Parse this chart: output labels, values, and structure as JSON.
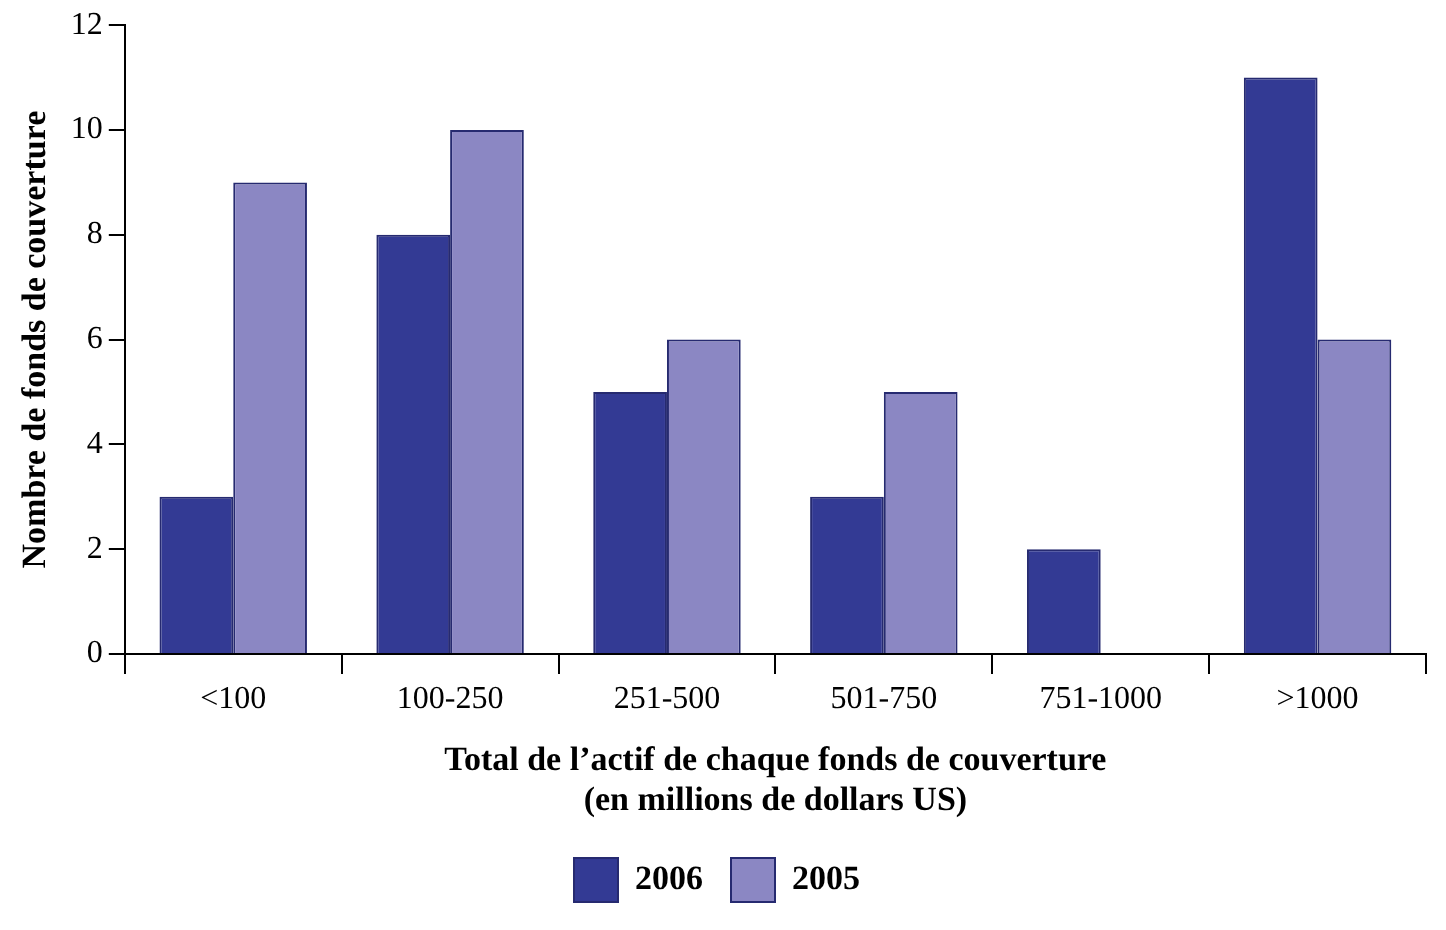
{
  "chart_data": {
    "type": "bar",
    "xlabel": "Total de l’actif de chaque fonds de couverture\n(en millions de dollars US)",
    "ylabel": "Nombre de fonds de couverture",
    "categories": [
      "<100",
      "100-250",
      "251-500",
      "501-750",
      "751-1000",
      ">1000"
    ],
    "series": [
      {
        "name": "2006",
        "color": "#333a94",
        "values": [
          3,
          8,
          5,
          3,
          2,
          11
        ]
      },
      {
        "name": "2005",
        "color": "#8b87c3",
        "values": [
          9,
          10,
          6,
          5,
          0,
          6
        ]
      }
    ],
    "ylim": [
      0,
      12
    ],
    "yticks": [
      0,
      2,
      4,
      6,
      8,
      10,
      12
    ],
    "grid": false,
    "legend": "bottom"
  }
}
